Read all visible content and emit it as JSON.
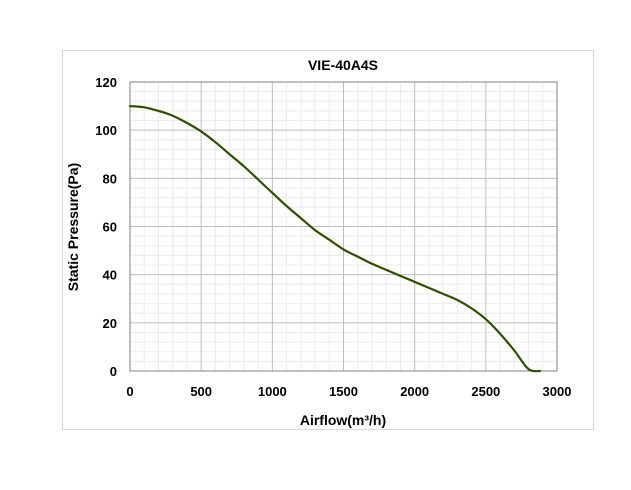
{
  "chart_data": {
    "type": "line",
    "title": "VIE-40A4S",
    "xlabel": "Airflow(m³/h)",
    "ylabel": "Static Pressure(Pa)",
    "xlim": [
      0,
      3000
    ],
    "ylim": [
      0,
      120
    ],
    "x_ticks": [
      0,
      500,
      1000,
      1500,
      2000,
      2500,
      3000
    ],
    "y_ticks": [
      0,
      20,
      40,
      60,
      80,
      100,
      120
    ],
    "grid": true,
    "legend": "none",
    "line_color": "#2f4f00",
    "series": [
      {
        "x": [
          0,
          100,
          200,
          300,
          400,
          500,
          600,
          700,
          800,
          900,
          1000,
          1100,
          1200,
          1300,
          1400,
          1500,
          1600,
          1700,
          1800,
          1900,
          2000,
          2100,
          2200,
          2300,
          2400,
          2500,
          2600,
          2700,
          2800,
          2880
        ],
        "y": [
          110,
          109.5,
          108,
          106,
          103,
          99.5,
          95,
          90,
          85,
          79.5,
          74,
          68.5,
          63.5,
          58.5,
          54.5,
          50.5,
          47.5,
          44.5,
          42,
          39.5,
          37,
          34.5,
          32,
          29.5,
          26,
          21.5,
          15.5,
          8.5,
          0.8,
          0
        ]
      }
    ]
  }
}
